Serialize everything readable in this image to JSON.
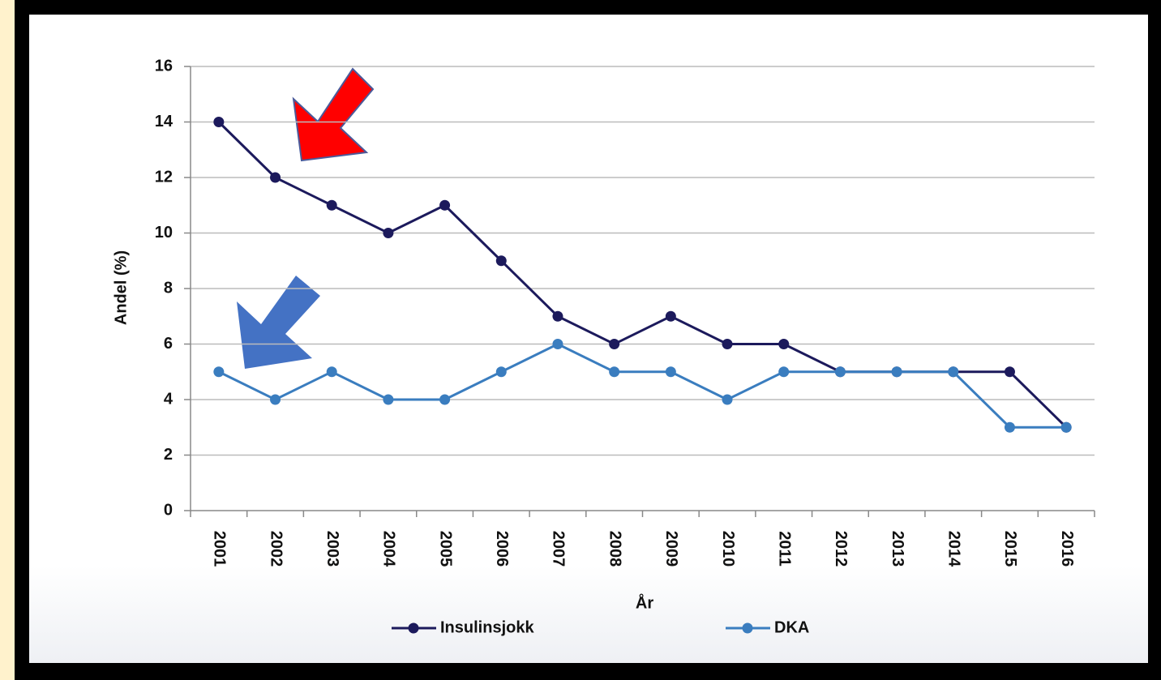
{
  "chart_data": {
    "type": "line",
    "xlabel": "År",
    "ylabel": "Andel (%)",
    "categories": [
      "2001",
      "2002",
      "2003",
      "2004",
      "2005",
      "2006",
      "2007",
      "2008",
      "2009",
      "2010",
      "2011",
      "2012",
      "2013",
      "2014",
      "2015",
      "2016"
    ],
    "series": [
      {
        "name": "Insulinsjokk",
        "color": "#1c1a5c",
        "values": [
          14,
          12,
          11,
          10,
          11,
          9,
          7,
          6,
          7,
          6,
          6,
          5,
          5,
          5,
          5,
          3
        ]
      },
      {
        "name": "DKA",
        "color": "#3a7dbf",
        "values": [
          5,
          4,
          5,
          4,
          4,
          5,
          6,
          5,
          5,
          4,
          5,
          5,
          5,
          5,
          3,
          3
        ]
      }
    ],
    "ylim": [
      0,
      16
    ],
    "yticks": [
      0,
      2,
      4,
      6,
      8,
      10,
      12,
      14,
      16
    ],
    "grid": true,
    "legend": "bottom"
  }
}
